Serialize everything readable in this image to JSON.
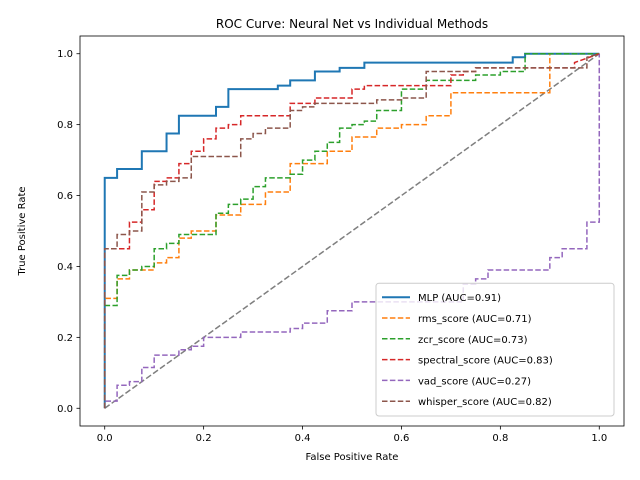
{
  "chart_data": {
    "type": "line",
    "title": "ROC Curve: Neural Net vs Individual Methods",
    "xlabel": "False Positive Rate",
    "ylabel": "True Positive Rate",
    "xlim": [
      -0.05,
      1.05
    ],
    "ylim": [
      -0.05,
      1.05
    ],
    "xticks": [
      "0.0",
      "0.2",
      "0.4",
      "0.6",
      "0.8",
      "1.0"
    ],
    "yticks": [
      "0.0",
      "0.2",
      "0.4",
      "0.6",
      "0.8",
      "1.0"
    ],
    "grid": false,
    "legend_position": "lower-right",
    "diagonal": {
      "x": [
        0,
        1
      ],
      "y": [
        0,
        1
      ],
      "color": "#7f7f7f",
      "style": "dashed"
    },
    "series": [
      {
        "name": "MLP (AUC=0.91)",
        "color": "#1f77b4",
        "style": "solid",
        "x": [
          0,
          0,
          0.025,
          0.025,
          0.075,
          0.075,
          0.125,
          0.125,
          0.15,
          0.15,
          0.225,
          0.225,
          0.25,
          0.25,
          0.35,
          0.35,
          0.375,
          0.375,
          0.425,
          0.425,
          0.475,
          0.475,
          0.525,
          0.525,
          0.825,
          0.825,
          0.85,
          0.85,
          1.0
        ],
        "y": [
          0,
          0.65,
          0.65,
          0.675,
          0.675,
          0.725,
          0.725,
          0.775,
          0.775,
          0.825,
          0.825,
          0.85,
          0.85,
          0.9,
          0.9,
          0.91,
          0.91,
          0.925,
          0.925,
          0.95,
          0.95,
          0.96,
          0.96,
          0.975,
          0.975,
          0.99,
          0.99,
          1.0,
          1.0
        ]
      },
      {
        "name": "rms_score (AUC=0.71)",
        "color": "#ff7f0e",
        "style": "dashed",
        "x": [
          0,
          0,
          0.025,
          0.025,
          0.05,
          0.05,
          0.1,
          0.1,
          0.125,
          0.125,
          0.15,
          0.15,
          0.175,
          0.175,
          0.225,
          0.225,
          0.275,
          0.275,
          0.325,
          0.325,
          0.375,
          0.375,
          0.45,
          0.45,
          0.5,
          0.5,
          0.55,
          0.55,
          0.6,
          0.6,
          0.65,
          0.65,
          0.7,
          0.7,
          0.9,
          0.9,
          0.95,
          0.95,
          1.0
        ],
        "y": [
          0,
          0.31,
          0.31,
          0.365,
          0.365,
          0.39,
          0.39,
          0.41,
          0.41,
          0.425,
          0.425,
          0.48,
          0.48,
          0.5,
          0.5,
          0.545,
          0.545,
          0.575,
          0.575,
          0.61,
          0.61,
          0.69,
          0.69,
          0.725,
          0.725,
          0.765,
          0.765,
          0.79,
          0.79,
          0.8,
          0.8,
          0.825,
          0.825,
          0.89,
          0.89,
          1.0,
          1.0,
          1.0,
          1.0
        ]
      },
      {
        "name": "zcr_score (AUC=0.73)",
        "color": "#2ca02c",
        "style": "dashed",
        "x": [
          0,
          0,
          0.025,
          0.025,
          0.05,
          0.05,
          0.075,
          0.075,
          0.1,
          0.1,
          0.125,
          0.125,
          0.15,
          0.15,
          0.225,
          0.225,
          0.25,
          0.25,
          0.275,
          0.275,
          0.3,
          0.3,
          0.325,
          0.325,
          0.375,
          0.375,
          0.4,
          0.4,
          0.425,
          0.425,
          0.45,
          0.45,
          0.475,
          0.475,
          0.5,
          0.5,
          0.525,
          0.525,
          0.55,
          0.55,
          0.6,
          0.6,
          0.65,
          0.65,
          0.75,
          0.75,
          0.8,
          0.8,
          0.85,
          0.85,
          1.0
        ],
        "y": [
          0,
          0.29,
          0.29,
          0.375,
          0.375,
          0.39,
          0.39,
          0.4,
          0.4,
          0.45,
          0.45,
          0.465,
          0.465,
          0.49,
          0.49,
          0.55,
          0.55,
          0.575,
          0.575,
          0.59,
          0.59,
          0.625,
          0.625,
          0.65,
          0.65,
          0.66,
          0.66,
          0.7,
          0.7,
          0.725,
          0.725,
          0.75,
          0.75,
          0.79,
          0.79,
          0.8,
          0.8,
          0.81,
          0.81,
          0.84,
          0.84,
          0.9,
          0.9,
          0.925,
          0.925,
          0.94,
          0.94,
          0.95,
          0.95,
          1.0,
          1.0
        ]
      },
      {
        "name": "spectral_score (AUC=0.83)",
        "color": "#d62728",
        "style": "dashed",
        "x": [
          0,
          0,
          0.05,
          0.05,
          0.075,
          0.075,
          0.1,
          0.1,
          0.125,
          0.125,
          0.15,
          0.15,
          0.175,
          0.175,
          0.2,
          0.2,
          0.225,
          0.225,
          0.25,
          0.25,
          0.275,
          0.275,
          0.375,
          0.375,
          0.425,
          0.425,
          0.5,
          0.5,
          0.525,
          0.525,
          0.7,
          0.7,
          0.725,
          0.725,
          0.75,
          0.75,
          0.95,
          0.95,
          1.0
        ],
        "y": [
          0,
          0.45,
          0.45,
          0.525,
          0.525,
          0.56,
          0.56,
          0.64,
          0.64,
          0.65,
          0.65,
          0.69,
          0.69,
          0.725,
          0.725,
          0.76,
          0.76,
          0.79,
          0.79,
          0.8,
          0.8,
          0.825,
          0.825,
          0.86,
          0.86,
          0.875,
          0.875,
          0.9,
          0.9,
          0.91,
          0.91,
          0.94,
          0.94,
          0.95,
          0.95,
          0.96,
          0.96,
          0.975,
          1.0
        ]
      },
      {
        "name": "vad_score (AUC=0.27)",
        "color": "#9467bd",
        "style": "dashed",
        "x": [
          0,
          0,
          0.025,
          0.025,
          0.05,
          0.05,
          0.075,
          0.075,
          0.1,
          0.1,
          0.15,
          0.15,
          0.175,
          0.175,
          0.2,
          0.2,
          0.275,
          0.275,
          0.375,
          0.375,
          0.4,
          0.4,
          0.45,
          0.45,
          0.5,
          0.5,
          0.725,
          0.725,
          0.75,
          0.75,
          0.775,
          0.775,
          0.9,
          0.9,
          0.925,
          0.925,
          0.975,
          0.975,
          1.0,
          1.0
        ],
        "y": [
          0,
          0.02,
          0.02,
          0.065,
          0.065,
          0.075,
          0.075,
          0.115,
          0.115,
          0.15,
          0.15,
          0.165,
          0.165,
          0.175,
          0.175,
          0.2,
          0.2,
          0.215,
          0.215,
          0.225,
          0.225,
          0.24,
          0.24,
          0.275,
          0.275,
          0.3,
          0.3,
          0.35,
          0.35,
          0.365,
          0.365,
          0.39,
          0.39,
          0.425,
          0.425,
          0.45,
          0.45,
          0.525,
          0.525,
          1.0
        ]
      },
      {
        "name": "whisper_score (AUC=0.82)",
        "color": "#8c564b",
        "style": "dashed",
        "x": [
          0,
          0,
          0.025,
          0.025,
          0.05,
          0.05,
          0.075,
          0.075,
          0.1,
          0.1,
          0.125,
          0.125,
          0.15,
          0.15,
          0.175,
          0.175,
          0.275,
          0.275,
          0.3,
          0.3,
          0.325,
          0.325,
          0.375,
          0.375,
          0.4,
          0.4,
          0.425,
          0.425,
          0.45,
          0.45,
          0.55,
          0.55,
          0.6,
          0.6,
          0.65,
          0.65,
          0.75,
          0.75,
          0.775,
          0.775,
          0.975,
          0.975,
          1.0
        ],
        "y": [
          0,
          0.45,
          0.45,
          0.49,
          0.49,
          0.5,
          0.5,
          0.61,
          0.61,
          0.63,
          0.63,
          0.64,
          0.64,
          0.65,
          0.65,
          0.71,
          0.71,
          0.76,
          0.76,
          0.775,
          0.775,
          0.79,
          0.79,
          0.84,
          0.84,
          0.85,
          0.85,
          0.86,
          0.86,
          0.86,
          0.86,
          0.87,
          0.87,
          0.875,
          0.875,
          0.95,
          0.95,
          0.96,
          0.96,
          0.96,
          0.96,
          0.99,
          1.0
        ]
      }
    ]
  }
}
